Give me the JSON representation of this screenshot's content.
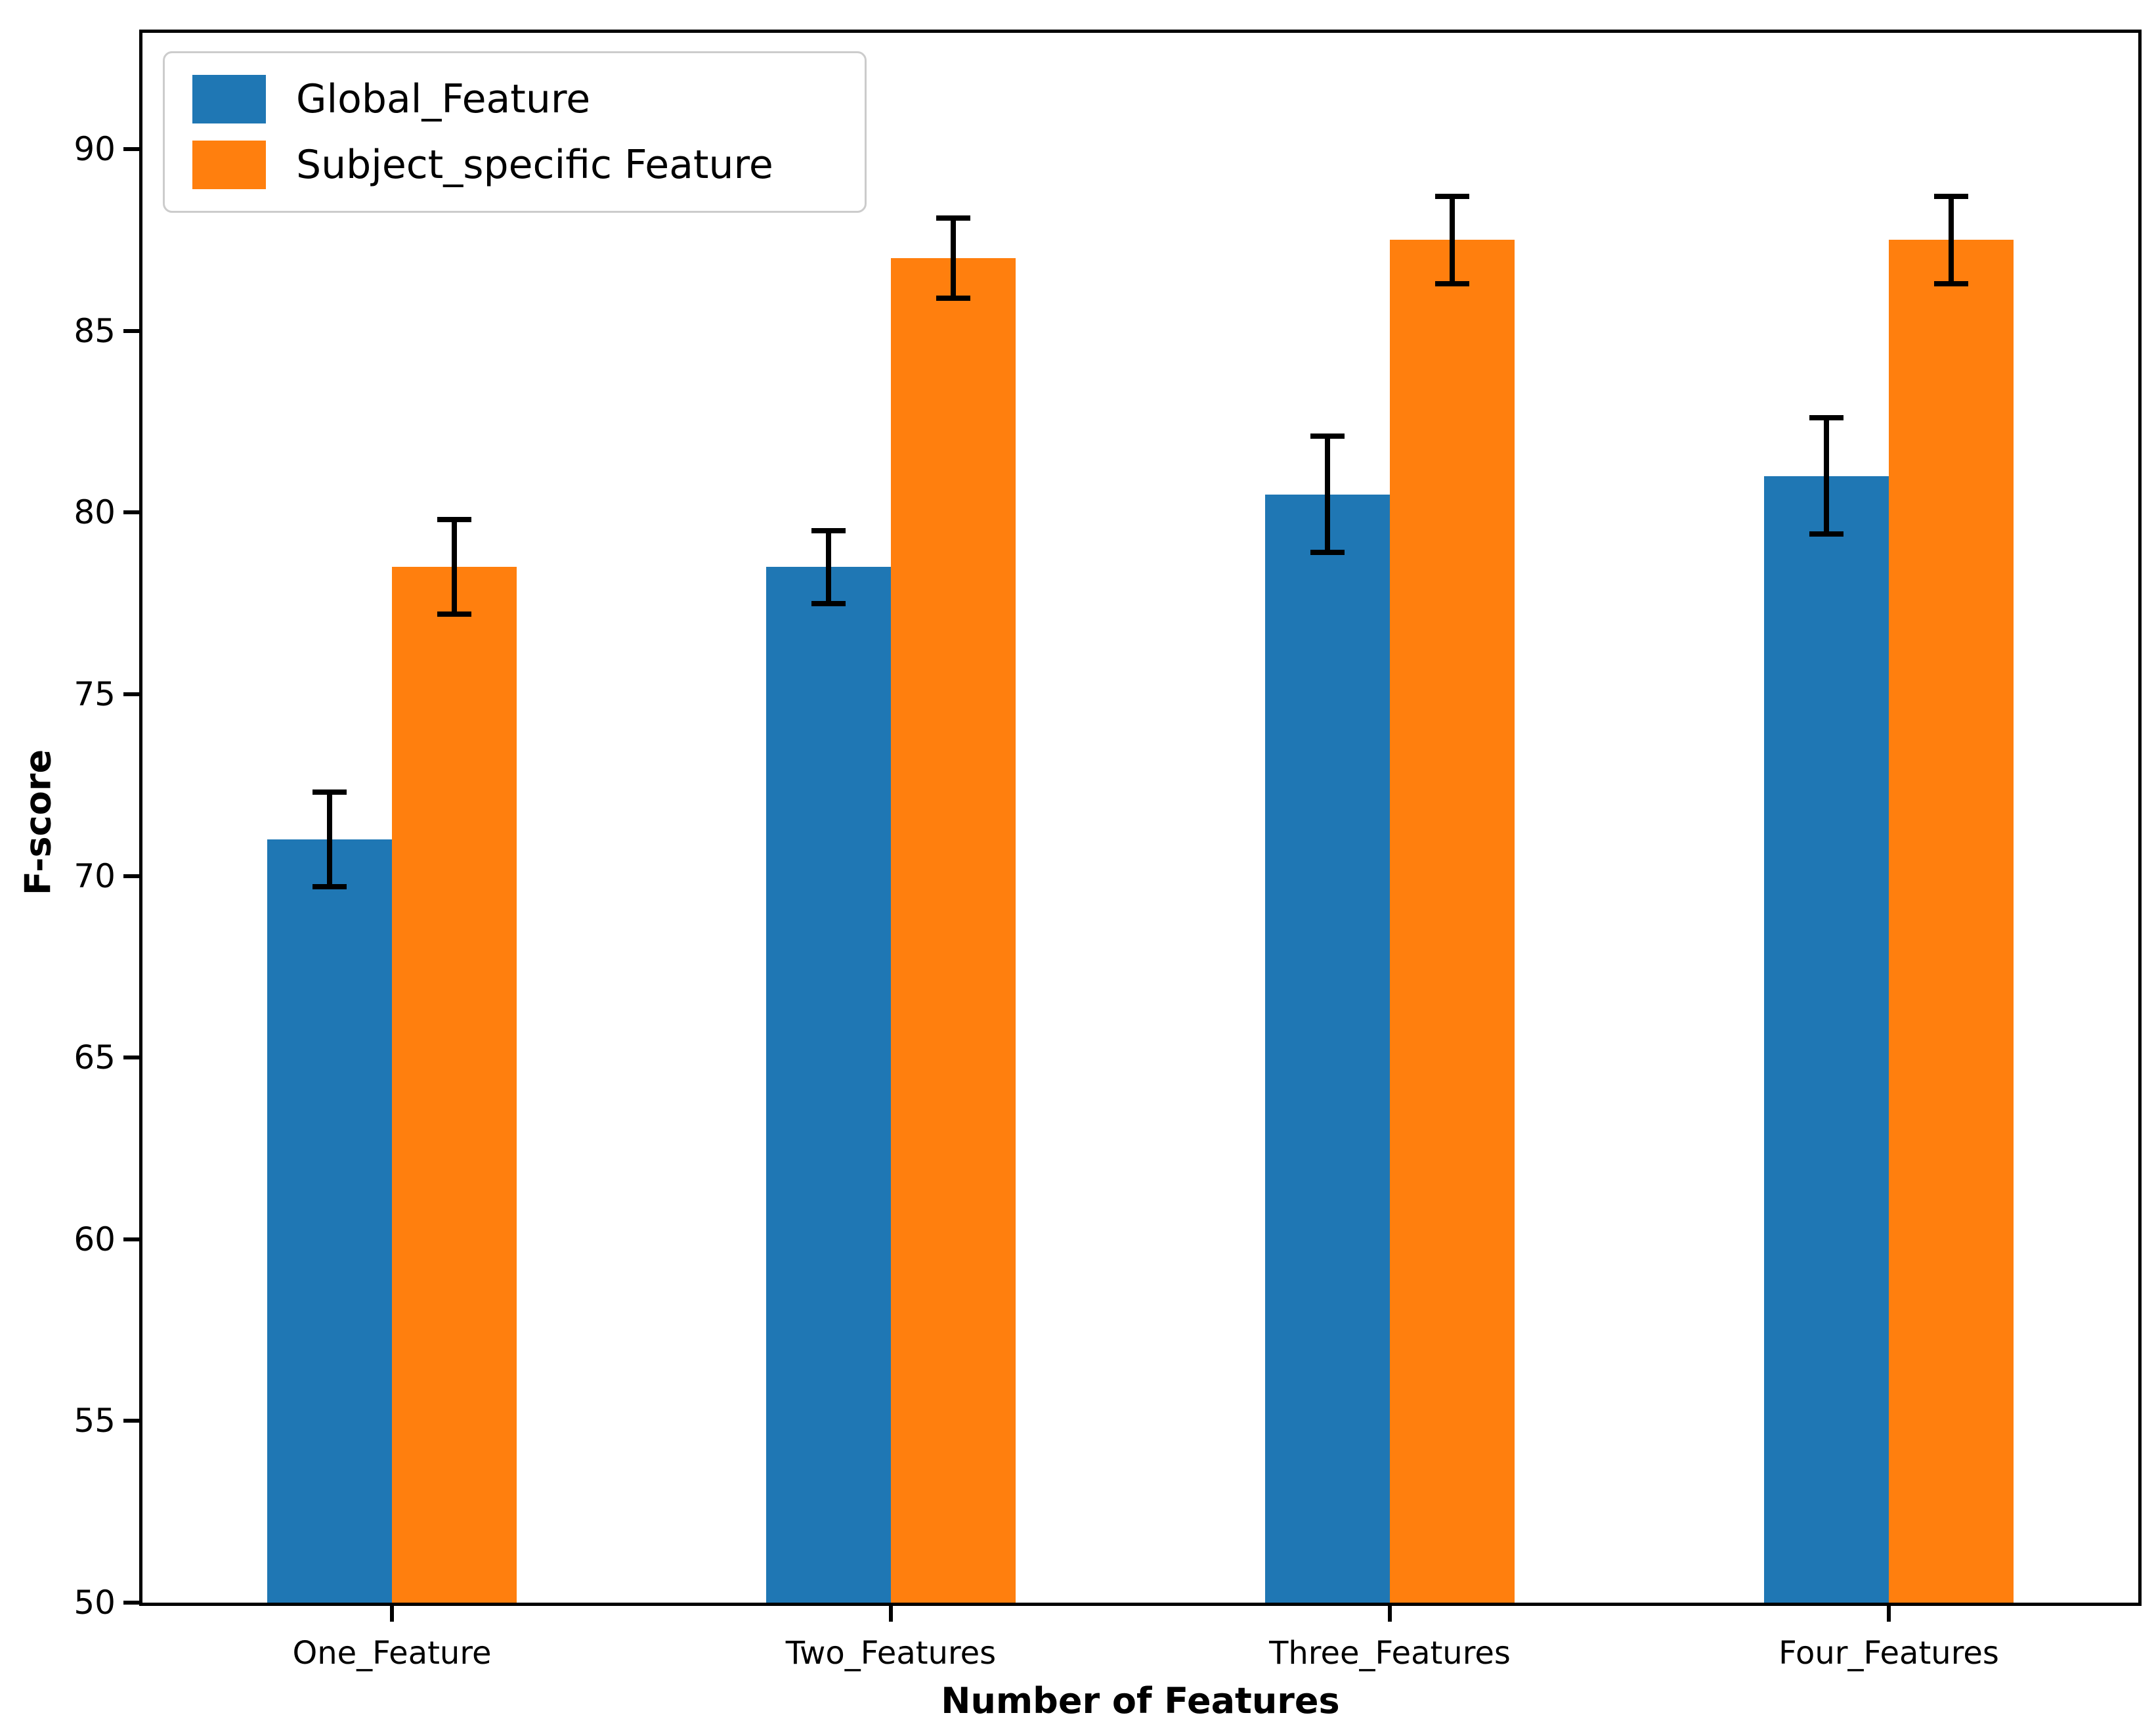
{
  "figure": {
    "background": "#ffffff",
    "axis_color": "#000000",
    "error_bar_color": "#000000",
    "legend_border_color": "#cccccc"
  },
  "chart_data": {
    "type": "bar",
    "title": "",
    "xlabel": "Number of Features",
    "ylabel": "F-score",
    "categories": [
      "One_Feature",
      "Two_Features",
      "Three_Features",
      "Four_Features"
    ],
    "series": [
      {
        "name": "Global_Feature",
        "color": "#1f77b4",
        "values": [
          71.0,
          78.5,
          80.5,
          81.0
        ],
        "errors": [
          1.3,
          1.0,
          1.6,
          1.6
        ]
      },
      {
        "name": "Subject_specific Feature",
        "color": "#ff7f0e",
        "values": [
          78.5,
          87.0,
          87.5,
          87.5
        ],
        "errors": [
          1.3,
          1.1,
          1.2,
          1.2
        ]
      }
    ],
    "ylim": [
      50,
      93.2
    ],
    "yticks": [
      50,
      55,
      60,
      65,
      70,
      75,
      80,
      85,
      90
    ],
    "grid": false,
    "legend_position": "upper-left",
    "error_bars": true
  }
}
